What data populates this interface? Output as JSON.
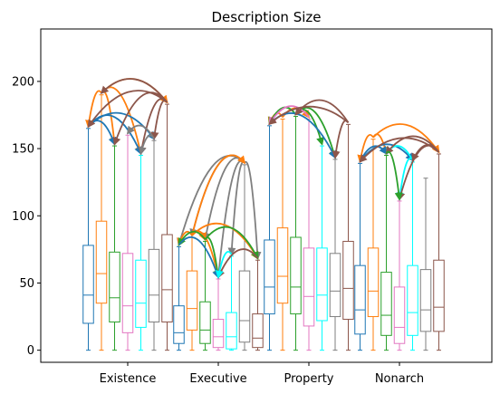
{
  "chart_data": {
    "type": "box",
    "title": "Description Size",
    "categories": [
      "Existence",
      "Executive",
      "Property",
      "Nonarch"
    ],
    "ylim": [
      -9,
      239
    ],
    "yticks": [
      0,
      50,
      100,
      150,
      200
    ],
    "series_colors": [
      "#1f77b4",
      "#ff7f0e",
      "#2ca02c",
      "#e377c2",
      "#00ffff",
      "#7f7f7f",
      "#8c564b"
    ],
    "grid": false,
    "legend": "none",
    "boxes": [
      [
        {
          "min": 0,
          "q1": 20,
          "median": 41,
          "q3": 78,
          "max": 165
        },
        {
          "min": 0,
          "q1": 35,
          "median": 57,
          "q3": 96,
          "max": 190
        },
        {
          "min": 0,
          "q1": 21,
          "median": 39,
          "q3": 73,
          "max": 152
        },
        {
          "min": 0,
          "q1": 13,
          "median": 33,
          "q3": 72,
          "max": 160
        },
        {
          "min": 0,
          "q1": 17,
          "median": 35,
          "q3": 67,
          "max": 145
        },
        {
          "min": 0,
          "q1": 21,
          "median": 41,
          "q3": 75,
          "max": 156
        },
        {
          "min": 0,
          "q1": 21,
          "median": 45,
          "q3": 86,
          "max": 183
        }
      ],
      [
        {
          "min": 0,
          "q1": 5,
          "median": 13,
          "q3": 33,
          "max": 77
        },
        {
          "min": 0,
          "q1": 15,
          "median": 31,
          "q3": 59,
          "max": 84
        },
        {
          "min": 0,
          "q1": 5,
          "median": 15,
          "q3": 36,
          "max": 81
        },
        {
          "min": 0,
          "q1": 2,
          "median": 10,
          "q3": 23,
          "max": 53
        },
        {
          "min": 0,
          "q1": 1,
          "median": 10,
          "q3": 28,
          "max": 70
        },
        {
          "min": 0,
          "q1": 6,
          "median": 22,
          "q3": 59,
          "max": 138
        },
        {
          "min": 0,
          "q1": 2,
          "median": 9,
          "q3": 27,
          "max": 67
        }
      ],
      [
        {
          "min": 0,
          "q1": 27,
          "median": 47,
          "q3": 82,
          "max": 167
        },
        {
          "min": 0,
          "q1": 35,
          "median": 55,
          "q3": 91,
          "max": 172
        },
        {
          "min": 0,
          "q1": 27,
          "median": 47,
          "q3": 84,
          "max": 174
        },
        {
          "min": 0,
          "q1": 18,
          "median": 40,
          "q3": 76,
          "max": 172
        },
        {
          "min": 0,
          "q1": 22,
          "median": 41,
          "q3": 76,
          "max": 152
        },
        {
          "min": 0,
          "q1": 25,
          "median": 44,
          "q3": 72,
          "max": 142
        },
        {
          "min": 0,
          "q1": 23,
          "median": 46,
          "q3": 81,
          "max": 168
        }
      ],
      [
        {
          "min": 0,
          "q1": 12,
          "median": 30,
          "q3": 63,
          "max": 139
        },
        {
          "min": 0,
          "q1": 25,
          "median": 44,
          "q3": 76,
          "max": 157
        },
        {
          "min": 0,
          "q1": 11,
          "median": 26,
          "q3": 58,
          "max": 145
        },
        {
          "min": 0,
          "q1": 5,
          "median": 17,
          "q3": 47,
          "max": 111
        },
        {
          "min": 0,
          "q1": 11,
          "median": 28,
          "q3": 63,
          "max": 140
        },
        {
          "min": 0,
          "q1": 14,
          "median": 30,
          "q3": 60,
          "max": 128
        },
        {
          "min": 0,
          "q1": 14,
          "median": 32,
          "q3": 67,
          "max": 146
        }
      ]
    ],
    "arrows": [
      {
        "group": 0,
        "from": 1,
        "to": 0,
        "color": "#ff7f0e"
      },
      {
        "group": 0,
        "from": 1,
        "to": 2,
        "color": "#ff7f0e"
      },
      {
        "group": 0,
        "from": 1,
        "to": 4,
        "color": "#ff7f0e"
      },
      {
        "group": 0,
        "from": 1,
        "to": 6,
        "color": "#ff7f0e"
      },
      {
        "group": 0,
        "from": 0,
        "to": 2,
        "color": "#1f77b4"
      },
      {
        "group": 0,
        "from": 0,
        "to": 4,
        "color": "#1f77b4"
      },
      {
        "group": 0,
        "from": 0,
        "to": 5,
        "color": "#1f77b4"
      },
      {
        "group": 0,
        "from": 6,
        "to": 0,
        "color": "#8c564b"
      },
      {
        "group": 0,
        "from": 6,
        "to": 1,
        "color": "#8c564b"
      },
      {
        "group": 0,
        "from": 6,
        "to": 2,
        "color": "#8c564b"
      },
      {
        "group": 0,
        "from": 6,
        "to": 4,
        "color": "#8c564b"
      },
      {
        "group": 0,
        "from": 6,
        "to": 5,
        "color": "#8c564b"
      },
      {
        "group": 0,
        "from": 5,
        "to": 3,
        "color": "#7f7f7f"
      },
      {
        "group": 0,
        "from": 5,
        "to": 4,
        "color": "#7f7f7f"
      },
      {
        "group": 1,
        "from": 5,
        "to": 0,
        "color": "#7f7f7f"
      },
      {
        "group": 1,
        "from": 5,
        "to": 1,
        "color": "#7f7f7f"
      },
      {
        "group": 1,
        "from": 5,
        "to": 2,
        "color": "#7f7f7f"
      },
      {
        "group": 1,
        "from": 5,
        "to": 3,
        "color": "#7f7f7f"
      },
      {
        "group": 1,
        "from": 5,
        "to": 4,
        "color": "#7f7f7f"
      },
      {
        "group": 1,
        "from": 5,
        "to": 6,
        "color": "#7f7f7f"
      },
      {
        "group": 1,
        "from": 1,
        "to": 0,
        "color": "#ff7f0e"
      },
      {
        "group": 1,
        "from": 1,
        "to": 2,
        "color": "#ff7f0e"
      },
      {
        "group": 1,
        "from": 1,
        "to": 3,
        "color": "#ff7f0e"
      },
      {
        "group": 1,
        "from": 1,
        "to": 5,
        "color": "#ff7f0e"
      },
      {
        "group": 1,
        "from": 1,
        "to": 6,
        "color": "#ff7f0e"
      },
      {
        "group": 1,
        "from": 2,
        "to": 0,
        "color": "#2ca02c"
      },
      {
        "group": 1,
        "from": 2,
        "to": 3,
        "color": "#2ca02c"
      },
      {
        "group": 1,
        "from": 2,
        "to": 6,
        "color": "#2ca02c"
      },
      {
        "group": 1,
        "from": 0,
        "to": 3,
        "color": "#1f77b4"
      },
      {
        "group": 1,
        "from": 6,
        "to": 3,
        "color": "#8c564b"
      },
      {
        "group": 1,
        "from": 4,
        "to": 3,
        "color": "#00ffff"
      },
      {
        "group": 2,
        "from": 1,
        "to": 0,
        "color": "#ff7f0e"
      },
      {
        "group": 2,
        "from": 1,
        "to": 3,
        "color": "#ff7f0e"
      },
      {
        "group": 2,
        "from": 2,
        "to": 0,
        "color": "#2ca02c"
      },
      {
        "group": 2,
        "from": 2,
        "to": 4,
        "color": "#2ca02c"
      },
      {
        "group": 2,
        "from": 2,
        "to": 5,
        "color": "#2ca02c"
      },
      {
        "group": 2,
        "from": 3,
        "to": 0,
        "color": "#e377c2"
      },
      {
        "group": 2,
        "from": 0,
        "to": 5,
        "color": "#1f77b4"
      },
      {
        "group": 2,
        "from": 6,
        "to": 0,
        "color": "#8c564b"
      },
      {
        "group": 2,
        "from": 6,
        "to": 2,
        "color": "#8c564b"
      },
      {
        "group": 2,
        "from": 6,
        "to": 5,
        "color": "#8c564b"
      },
      {
        "group": 3,
        "from": 1,
        "to": 0,
        "color": "#ff7f0e"
      },
      {
        "group": 3,
        "from": 1,
        "to": 2,
        "color": "#ff7f0e"
      },
      {
        "group": 3,
        "from": 1,
        "to": 6,
        "color": "#ff7f0e"
      },
      {
        "group": 3,
        "from": 0,
        "to": 2,
        "color": "#1f77b4"
      },
      {
        "group": 3,
        "from": 0,
        "to": 4,
        "color": "#1f77b4"
      },
      {
        "group": 3,
        "from": 4,
        "to": 3,
        "color": "#00ffff"
      },
      {
        "group": 3,
        "from": 4,
        "to": 2,
        "color": "#00ffff"
      },
      {
        "group": 3,
        "from": 6,
        "to": 0,
        "color": "#8c564b"
      },
      {
        "group": 3,
        "from": 6,
        "to": 3,
        "color": "#8c564b"
      },
      {
        "group": 3,
        "from": 6,
        "to": 4,
        "color": "#8c564b"
      },
      {
        "group": 3,
        "from": 6,
        "to": 2,
        "color": "#8c564b"
      },
      {
        "group": 3,
        "from": 2,
        "to": 3,
        "color": "#2ca02c"
      }
    ]
  }
}
